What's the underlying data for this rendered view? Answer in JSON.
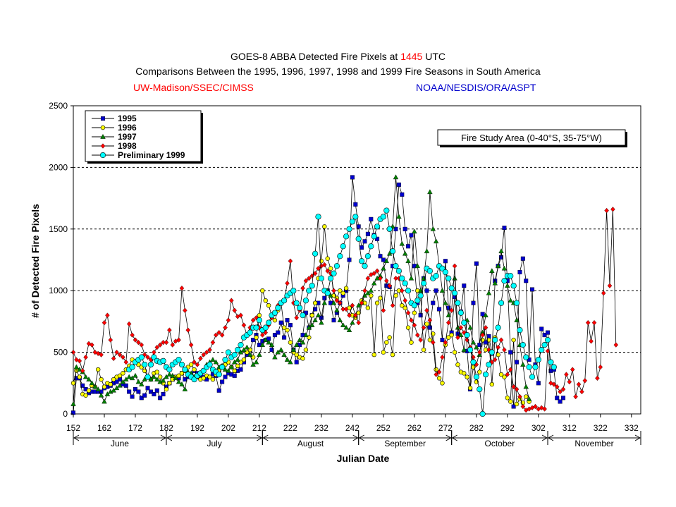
{
  "header": {
    "title_prefix": "GOES-8 ABBA Detected Fire Pixels at ",
    "title_time": "1445",
    "title_suffix": " UTC",
    "subtitle": "Comparisons Between the 1995, 1996, 1997, 1998 and 1999 Fire Seasons in South America",
    "credit_left": "UW-Madison/SSEC/CIMSS",
    "credit_right": "NOAA/NESDIS/ORA/ASPT"
  },
  "chart_data": {
    "type": "line",
    "title": "GOES-8 ABBA Detected Fire Pixels at 1445 UTC",
    "xlabel": "Julian Date",
    "ylabel": "# of Detected Fire Pixels",
    "xlim": [
      152,
      335
    ],
    "ylim": [
      0,
      2500
    ],
    "xticks": [
      152,
      162,
      172,
      182,
      192,
      202,
      212,
      222,
      232,
      242,
      252,
      262,
      272,
      282,
      292,
      302,
      312,
      322,
      332
    ],
    "yticks": [
      0,
      500,
      1000,
      1500,
      2000,
      2500
    ],
    "annotation": "Fire Study Area (0-40°S, 35-75°W)",
    "legend_position": "top-left",
    "months": [
      {
        "label": "June",
        "start": 152,
        "end": 182
      },
      {
        "label": "July",
        "start": 182,
        "end": 213
      },
      {
        "label": "August",
        "start": 213,
        "end": 244
      },
      {
        "label": "September",
        "start": 244,
        "end": 274
      },
      {
        "label": "October",
        "start": 274,
        "end": 305
      },
      {
        "label": "November",
        "start": 305,
        "end": 335
      }
    ],
    "series": [
      {
        "name": "1995",
        "color": "#0000cc",
        "marker": "square",
        "x_start": 152,
        "values": [
          10,
          290,
          290,
          230,
          200,
          170,
          180,
          180,
          180,
          180,
          210,
          220,
          230,
          250,
          260,
          280,
          240,
          230,
          180,
          140,
          200,
          180,
          130,
          150,
          210,
          180,
          160,
          190,
          130,
          160,
          220,
          250,
          280,
          300,
          290,
          330,
          280,
          300,
          320,
          350,
          330,
          310,
          300,
          280,
          300,
          320,
          310,
          190,
          260,
          300,
          330,
          320,
          310,
          350,
          360,
          420,
          480,
          520,
          600,
          640,
          560,
          590,
          600,
          610,
          520,
          640,
          660,
          740,
          620,
          760,
          720,
          520,
          420,
          560,
          640,
          820,
          700,
          800,
          850,
          900,
          780,
          940,
          1000,
          900,
          760,
          820,
          900,
          960,
          1000,
          1250,
          1920,
          1700,
          1520,
          1350,
          1400,
          1460,
          1580,
          1450,
          1420,
          1280,
          1250,
          1040,
          1030,
          1200,
          1500,
          1860,
          1780,
          1500,
          1360,
          1450,
          1200,
          900,
          800,
          1100,
          1000,
          700,
          900,
          1000,
          850,
          600,
          1240,
          860,
          660,
          950,
          650,
          830,
          1040,
          510,
          200,
          900,
          1220,
          560,
          810,
          580,
          630,
          490,
          1080,
          1200,
          1270,
          1510,
          1080,
          500,
          60,
          420,
          1150,
          1260,
          1080,
          440,
          1010,
          400,
          250,
          690,
          640,
          660,
          350,
          360,
          130,
          100,
          130
        ]
      },
      {
        "name": "1996",
        "color": "#ffff00",
        "marker": "circle",
        "x_start": 152,
        "values": [
          250,
          350,
          300,
          160,
          150,
          190,
          230,
          220,
          360,
          280,
          220,
          250,
          240,
          280,
          300,
          310,
          330,
          360,
          390,
          440,
          420,
          400,
          380,
          350,
          300,
          280,
          330,
          340,
          300,
          250,
          200,
          250,
          280,
          300,
          310,
          330,
          350,
          380,
          400,
          360,
          300,
          280,
          290,
          310,
          300,
          280,
          320,
          350,
          390,
          400,
          420,
          380,
          350,
          390,
          420,
          440,
          500,
          520,
          460,
          620,
          800,
          1000,
          920,
          880,
          800,
          760,
          840,
          900,
          700,
          680,
          580,
          500,
          480,
          460,
          450,
          520,
          620,
          800,
          900,
          1100,
          1240,
          1520,
          1260,
          1180,
          960,
          940,
          1000,
          980,
          1020,
          860,
          800,
          780,
          820,
          920,
          900,
          860,
          960,
          480,
          900,
          940,
          500,
          580,
          620,
          480,
          960,
          1000,
          880,
          860,
          700,
          580,
          820,
          1000,
          960,
          520,
          730,
          600,
          650,
          360,
          290,
          250,
          560,
          620,
          640,
          500,
          400,
          340,
          330,
          300,
          210,
          380,
          260,
          340,
          600,
          520,
          600,
          240,
          620,
          480,
          320,
          300,
          130,
          100,
          600,
          80,
          120,
          90,
          140,
          100
        ]
      },
      {
        "name": "1997",
        "color": "#008000",
        "marker": "triangle",
        "x_start": 152,
        "values": [
          80,
          380,
          360,
          340,
          300,
          280,
          250,
          220,
          200,
          150,
          100,
          160,
          180,
          190,
          210,
          230,
          260,
          280,
          300,
          290,
          310,
          260,
          240,
          280,
          300,
          280,
          300,
          280,
          260,
          270,
          300,
          320,
          310,
          290,
          260,
          240,
          200,
          340,
          330,
          300,
          310,
          330,
          350,
          400,
          420,
          440,
          420,
          380,
          390,
          360,
          350,
          380,
          420,
          440,
          500,
          520,
          540,
          480,
          400,
          420,
          480,
          560,
          600,
          580,
          560,
          460,
          500,
          520,
          480,
          440,
          420,
          520,
          560,
          600,
          580,
          640,
          700,
          720,
          760,
          800,
          740,
          900,
          1000,
          960,
          900,
          840,
          760,
          720,
          700,
          680,
          740,
          800,
          880,
          900,
          960,
          980,
          1000,
          1060,
          1100,
          1120,
          1180,
          1240,
          1300,
          1520,
          1920,
          1600,
          1380,
          1300,
          1240,
          1100,
          1480,
          1200,
          1000,
          1100,
          1320,
          1800,
          1500,
          1400,
          1200,
          1000,
          900,
          800,
          1020,
          1100,
          700,
          640,
          520,
          760,
          700,
          580,
          540,
          480,
          660,
          800,
          980,
          1160,
          1060,
          1200,
          1320,
          1180,
          1040,
          920,
          900,
          760,
          560,
          400,
          220,
          120
        ]
      },
      {
        "name": "1998",
        "color": "#ff0000",
        "marker": "diamond",
        "x_start": 152,
        "values": [
          500,
          440,
          430,
          350,
          460,
          570,
          560,
          500,
          490,
          480,
          740,
          800,
          600,
          450,
          500,
          480,
          460,
          420,
          730,
          640,
          600,
          580,
          560,
          480,
          460,
          440,
          500,
          540,
          560,
          580,
          580,
          680,
          560,
          590,
          600,
          1020,
          840,
          680,
          560,
          420,
          400,
          450,
          480,
          500,
          520,
          580,
          640,
          660,
          640,
          700,
          760,
          920,
          840,
          790,
          800,
          720,
          640,
          700,
          760,
          780,
          700,
          640,
          660,
          720,
          780,
          820,
          880,
          900,
          920,
          1060,
          1240,
          900,
          780,
          840,
          1020,
          1080,
          1100,
          1120,
          1140,
          1180,
          1200,
          1210,
          1160,
          1140,
          1000,
          920,
          900,
          850,
          850,
          800,
          880,
          800,
          740,
          900,
          1000,
          1100,
          1130,
          1140,
          1160,
          1100,
          840,
          1080,
          1040,
          880,
          1100,
          1100,
          1000,
          920,
          820,
          760,
          720,
          640,
          600,
          700,
          840,
          760,
          580,
          320,
          340,
          460,
          580,
          740,
          840,
          1200,
          620,
          700,
          660,
          600,
          540,
          460,
          400,
          500,
          640,
          700,
          520,
          420,
          440,
          540,
          600,
          520,
          320,
          360,
          220,
          200,
          140,
          60,
          30,
          40,
          50,
          60,
          40,
          50,
          40,
          510,
          250,
          240,
          220,
          180,
          200,
          320,
          260,
          360,
          140,
          240,
          180,
          270,
          740,
          590,
          740,
          290,
          380,
          980,
          1650,
          1040,
          1660,
          560
        ]
      },
      {
        "name": "Preliminary 1999",
        "color": "#00ffff",
        "marker": "circle",
        "x_start": 152,
        "values": [
          null,
          null,
          null,
          null,
          null,
          null,
          null,
          null,
          null,
          null,
          null,
          null,
          null,
          null,
          null,
          null,
          null,
          null,
          360,
          380,
          420,
          440,
          460,
          400,
          300,
          400,
          460,
          430,
          420,
          430,
          380,
          360,
          400,
          420,
          440,
          400,
          360,
          320,
          300,
          280,
          310,
          330,
          350,
          380,
          400,
          360,
          340,
          320,
          380,
          440,
          500,
          460,
          480,
          520,
          560,
          620,
          640,
          660,
          700,
          700,
          760,
          680,
          700,
          740,
          800,
          820,
          860,
          900,
          920,
          960,
          980,
          1000,
          900,
          860,
          800,
          920,
          1000,
          1040,
          1300,
          1600,
          1100,
          1000,
          980,
          1100,
          1140,
          1200,
          1280,
          1360,
          1440,
          1500,
          1560,
          1600,
          1420,
          1240,
          1200,
          1280,
          1360,
          1440,
          1520,
          1580,
          1600,
          1650,
          1500,
          1320,
          1200,
          1160,
          1100,
          1060,
          1000,
          900,
          880,
          920,
          960,
          1060,
          1180,
          1160,
          1100,
          1120,
          1200,
          1180,
          1150,
          1100,
          1020,
          980,
          900,
          820,
          740,
          640,
          520,
          420,
          300,
          200,
          0,
          320,
          400,
          500,
          600,
          700,
          900,
          1080,
          1120,
          1120,
          1040,
          900,
          680,
          560,
          460,
          380,
          300,
          380,
          440,
          520,
          560,
          600,
          420,
          380
        ]
      }
    ]
  }
}
